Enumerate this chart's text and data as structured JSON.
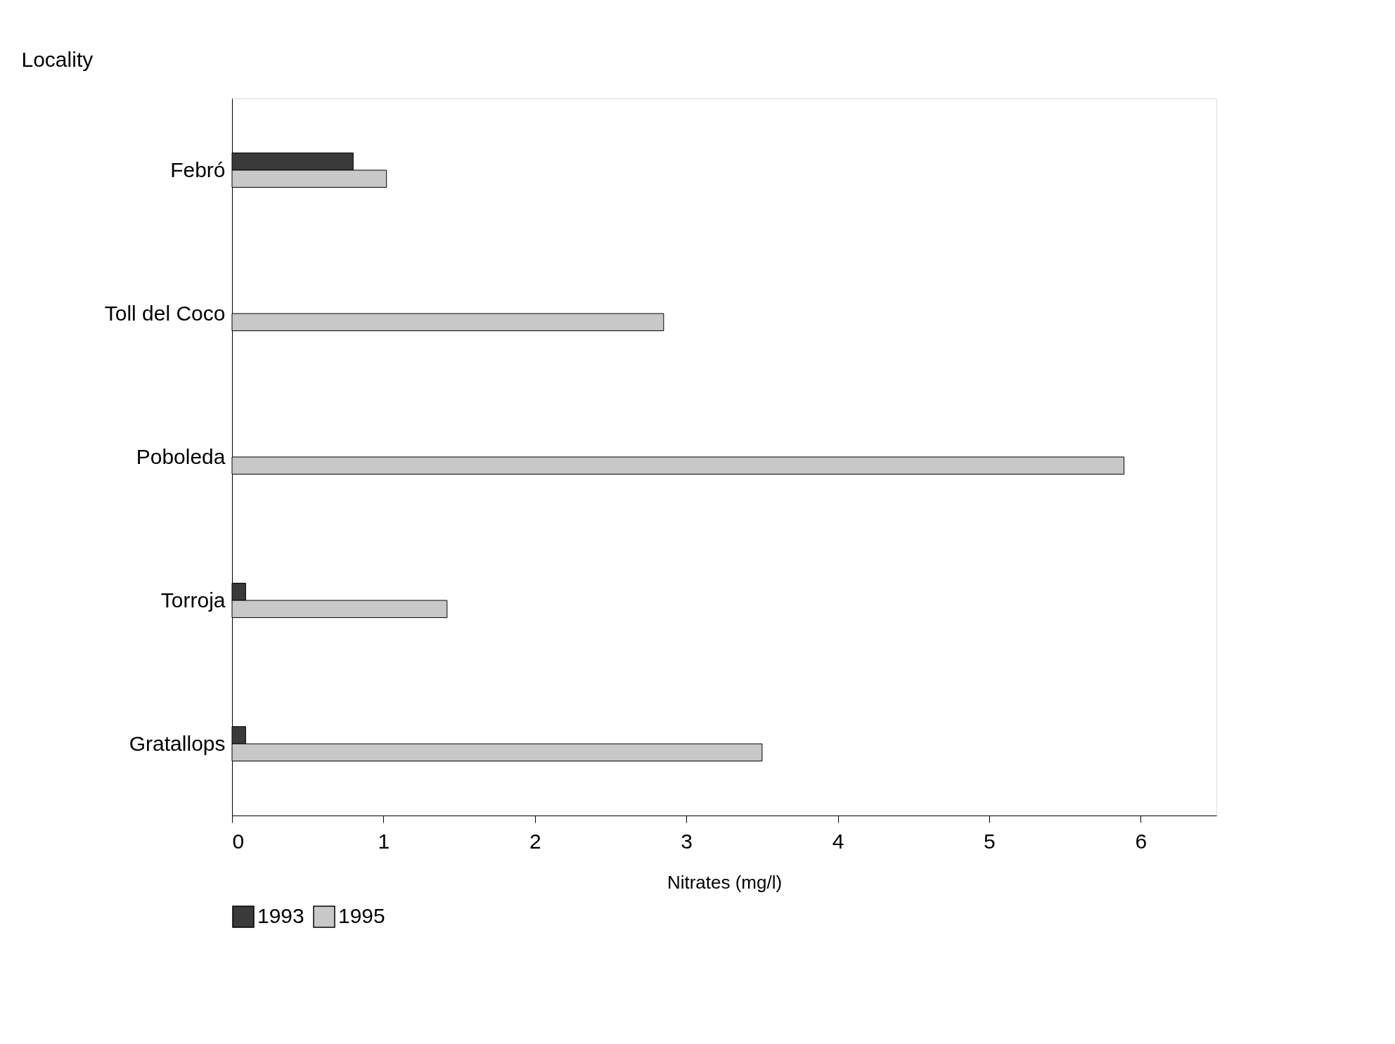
{
  "chart_data": {
    "type": "bar",
    "orientation": "horizontal",
    "ylabel": "Locality",
    "xlabel": "Nitrates (mg/l)",
    "categories": [
      "Febró",
      "Toll del Coco",
      "Poboleda",
      "Torroja",
      "Gratallops"
    ],
    "series": [
      {
        "name": "1993",
        "color": "#3a3a3a",
        "values": [
          0.8,
          null,
          null,
          0.09,
          0.09
        ]
      },
      {
        "name": "1995",
        "color": "#c8c8c8",
        "values": [
          1.02,
          2.85,
          5.89,
          1.42,
          3.5
        ]
      }
    ],
    "xlim": [
      0,
      6.5
    ],
    "xticks": [
      0,
      1,
      2,
      3,
      4,
      5,
      6
    ],
    "grid": false,
    "legend": "bottom"
  }
}
